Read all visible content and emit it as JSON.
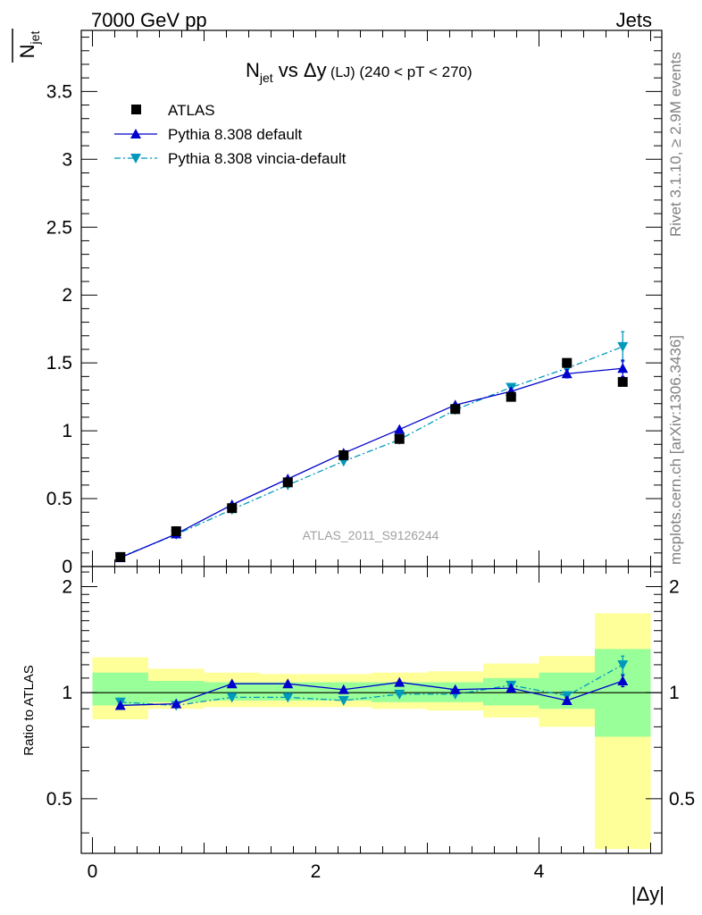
{
  "header": {
    "energy_label": "7000 GeV pp",
    "process_label": "Jets",
    "rivet_label": "Rivet 3.1.10, ≥ 2.9M events",
    "mcplots_label": "mcplots.cern.ch [arXiv:1306.3436]",
    "analysis_label": "ATLAS_2011_S9126244"
  },
  "title": {
    "main": "N",
    "sub": "jet",
    "rest": " vs Δy",
    "small": " (LJ)",
    "range": " (240 < pT < 270)"
  },
  "colors": {
    "atlas": "#000000",
    "default": "#0000cc",
    "vincia": "#0099bb",
    "band_inner": "#99ff99",
    "band_outer": "#ffff99"
  },
  "chart_data": [
    {
      "type": "scatter",
      "panel": "main",
      "ylabel": "N̅jet",
      "ylabel_parts": {
        "N": "N",
        "sub": "jet"
      },
      "xlim": [
        -0.1,
        5.1
      ],
      "ylim": [
        0,
        3.95
      ],
      "y_ticks": [
        {
          "value": 0,
          "label": "0"
        },
        {
          "value": 0.5,
          "label": "0.5"
        },
        {
          "value": 1,
          "label": "1"
        },
        {
          "value": 1.5,
          "label": "1.5"
        },
        {
          "value": 2,
          "label": "2"
        },
        {
          "value": 2.5,
          "label": "2.5"
        },
        {
          "value": 3,
          "label": "3"
        },
        {
          "value": 3.5,
          "label": "3.5"
        }
      ],
      "legend_position": "top-left",
      "x": [
        0.25,
        0.75,
        1.25,
        1.75,
        2.25,
        2.75,
        3.25,
        3.75,
        4.25,
        4.75
      ],
      "series": [
        {
          "name": "ATLAS",
          "marker": "square",
          "values": [
            0.07,
            0.26,
            0.43,
            0.62,
            0.82,
            0.94,
            1.16,
            1.25,
            1.5,
            1.36
          ]
        },
        {
          "name": "Pythia 8.308 default",
          "marker": "triangle-up",
          "line": "solid",
          "values": [
            0.065,
            0.24,
            0.455,
            0.645,
            0.835,
            1.01,
            1.19,
            1.29,
            1.42,
            1.46
          ],
          "errors": [
            0,
            0,
            0,
            0,
            0,
            0,
            0,
            0,
            0.03,
            0.06
          ]
        },
        {
          "name": "Pythia 8.308 vincia-default",
          "marker": "triangle-down",
          "line": "dashdot",
          "values": [
            0.07,
            0.235,
            0.42,
            0.6,
            0.775,
            0.935,
            1.155,
            1.32,
            1.46,
            1.62
          ],
          "errors": [
            0,
            0,
            0,
            0,
            0,
            0,
            0,
            0,
            0.04,
            0.11
          ]
        }
      ]
    },
    {
      "type": "scatter",
      "panel": "ratio",
      "ylabel": "Ratio to ATLAS",
      "xlabel": "|Δy|",
      "xlim": [
        -0.1,
        5.1
      ],
      "ylim": [
        0.35,
        2.28
      ],
      "y_scale": "log",
      "x_ticks": [
        {
          "value": 0,
          "label": "0"
        },
        {
          "value": 2,
          "label": "2"
        },
        {
          "value": 4,
          "label": "4"
        }
      ],
      "y_ticks": [
        {
          "value": 0.5,
          "label": "0.5"
        },
        {
          "value": 1,
          "label": "1"
        },
        {
          "value": 2,
          "label": "2"
        }
      ],
      "bin_edges": [
        0,
        0.5,
        1,
        1.5,
        2,
        2.5,
        3,
        3.5,
        4,
        4.5,
        5
      ],
      "band_inner_low": [
        0.92,
        0.94,
        0.95,
        0.95,
        0.95,
        0.94,
        0.94,
        0.92,
        0.9,
        0.75
      ],
      "band_inner_high": [
        1.14,
        1.08,
        1.07,
        1.07,
        1.07,
        1.07,
        1.07,
        1.1,
        1.14,
        1.33
      ],
      "band_outer_low": [
        0.84,
        0.9,
        0.91,
        0.91,
        0.91,
        0.9,
        0.89,
        0.85,
        0.8,
        0.36
      ],
      "band_outer_high": [
        1.26,
        1.17,
        1.14,
        1.13,
        1.13,
        1.14,
        1.15,
        1.21,
        1.27,
        1.68
      ],
      "x": [
        0.25,
        0.75,
        1.25,
        1.75,
        2.25,
        2.75,
        3.25,
        3.75,
        4.25,
        4.75
      ],
      "series": [
        {
          "name": "Pythia 8.308 default",
          "marker": "triangle-up",
          "line": "solid",
          "values": [
            0.92,
            0.93,
            1.06,
            1.06,
            1.02,
            1.07,
            1.02,
            1.03,
            0.95,
            1.08
          ],
          "errors": [
            0,
            0,
            0,
            0,
            0,
            0,
            0,
            0,
            0.02,
            0.04
          ]
        },
        {
          "name": "Pythia 8.308 vincia-default",
          "marker": "triangle-down",
          "line": "dashdot",
          "values": [
            0.94,
            0.92,
            0.97,
            0.97,
            0.95,
            0.99,
            0.99,
            1.05,
            0.98,
            1.2
          ],
          "errors": [
            0,
            0,
            0,
            0,
            0,
            0,
            0,
            0,
            0.02,
            0.07
          ]
        }
      ]
    }
  ]
}
